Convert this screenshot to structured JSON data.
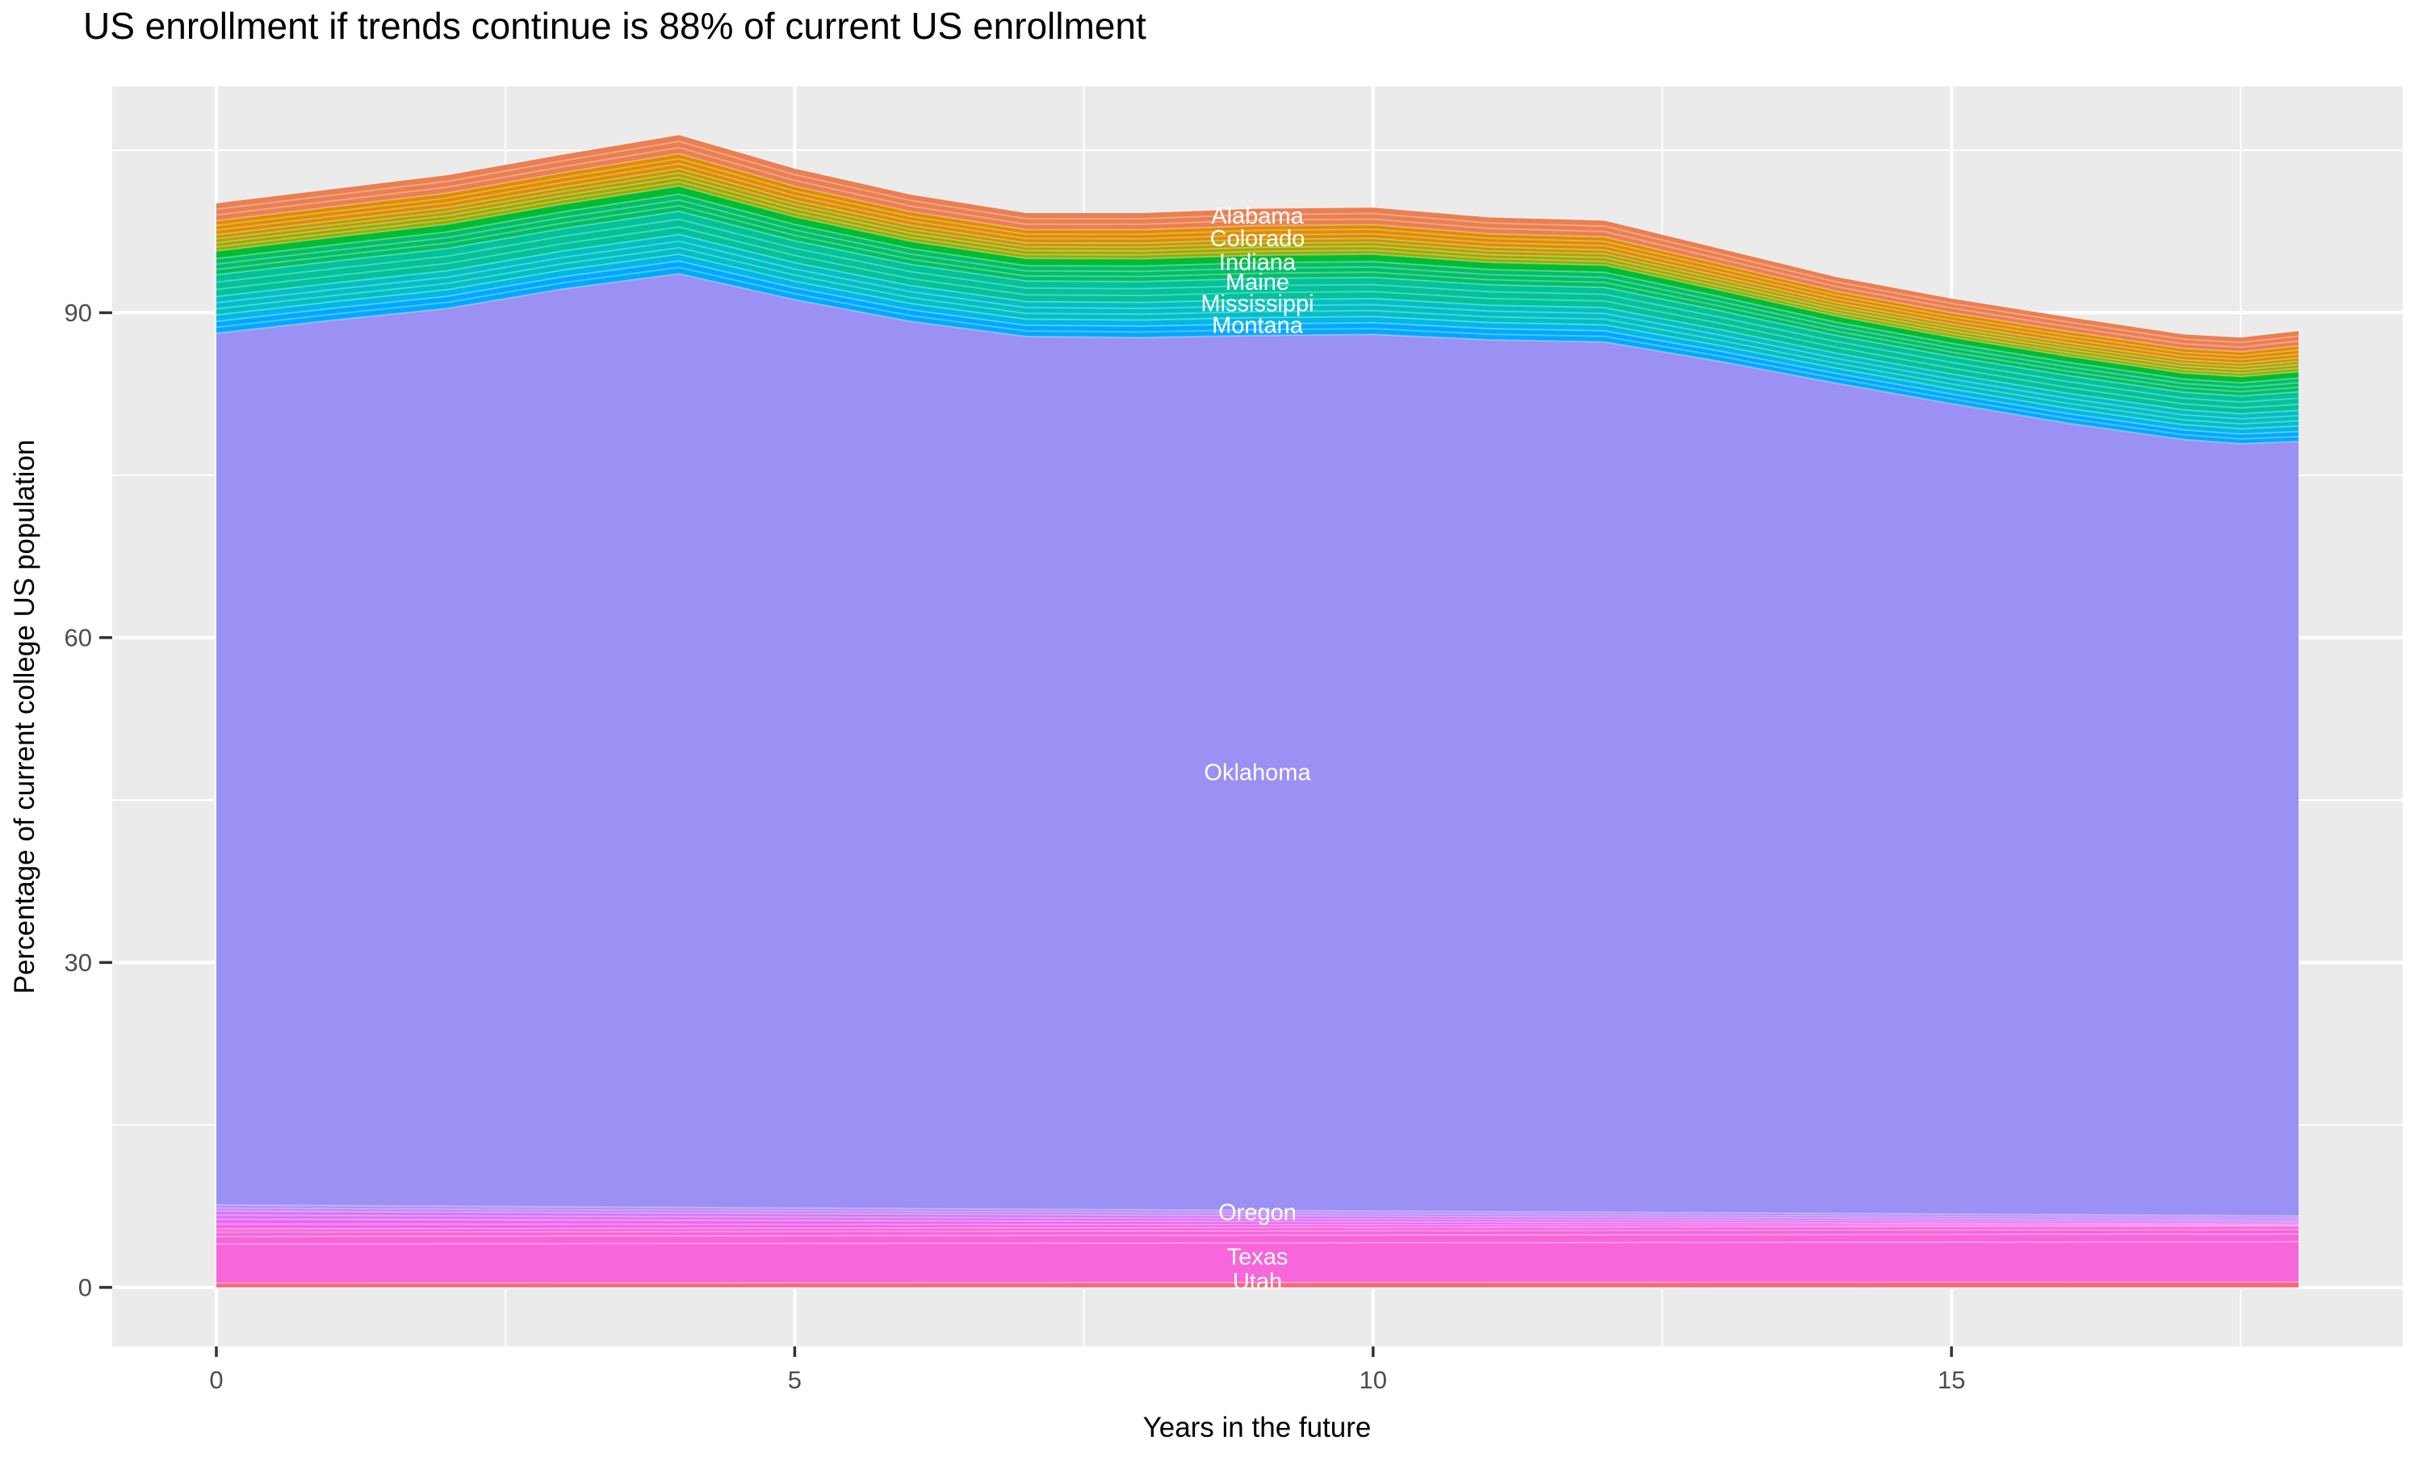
{
  "chart": {
    "title": "US enrollment if trends continue is 88% of current US enrollment",
    "xlabel": "Years in the future",
    "ylabel": "Percentage of current college US population"
  },
  "colors": {
    "background": "#FFFFFF",
    "panel": "#EBEBEB",
    "gridline": "#FFFFFF",
    "tick_mark": "#333333",
    "tick_label": "#4D4D4D",
    "area_label_text": "#FFFFFF",
    "separator_line": "rgba(255,255,255,0.30)"
  },
  "chart_data": {
    "type": "area",
    "stacked": true,
    "title": "US enrollment if trends continue is 88% of current US enrollment",
    "xlabel": "Years in the future",
    "ylabel": "Percentage of current college US population",
    "legend": "none",
    "grid": "on",
    "x_range": [
      -0.9,
      18.9
    ],
    "y_range": [
      -5.45,
      110.9
    ],
    "x_ticks": [
      0,
      5,
      10,
      15
    ],
    "y_ticks": [
      0,
      30,
      60,
      90
    ],
    "x_minor_ticks": [
      2.5,
      7.5,
      12.5,
      17.5
    ],
    "y_minor_ticks": [
      15,
      45,
      75,
      105
    ],
    "x": [
      0,
      1,
      2,
      3,
      4,
      5,
      6,
      7,
      8,
      9,
      10,
      11,
      12,
      13,
      14,
      15,
      16,
      17,
      17.5,
      18
    ],
    "total_top": [
      100.1,
      101.4,
      102.7,
      104.6,
      106.4,
      103.3,
      100.9,
      99.2,
      99.2,
      99.6,
      99.7,
      98.8,
      98.5,
      95.9,
      93.3,
      91.3,
      89.6,
      88.0,
      87.7,
      88.3
    ],
    "oklahoma_top": [
      88.1,
      89.3,
      90.4,
      92.2,
      93.6,
      91.2,
      89.2,
      87.8,
      87.7,
      87.9,
      88.0,
      87.5,
      87.3,
      85.5,
      83.5,
      81.6,
      79.8,
      78.3,
      77.9,
      78.1
    ],
    "bands_bottom": [
      {
        "name": "Utah",
        "color": "#F9687B",
        "top_start": 0.4,
        "top_end": 0.5,
        "inner_lines": []
      },
      {
        "name": "Texas",
        "color": "#F766DB",
        "top_start": 5.4,
        "top_end": 5.65,
        "inner_lines": [
          0.72,
          0.86,
          0.94
        ]
      },
      {
        "name": "",
        "color": "#EF66EC",
        "top_start": 6.3,
        "top_end": 5.85,
        "inner_lines": [
          0.5
        ]
      },
      {
        "name": "",
        "color": "#D974F8",
        "top_start": 7.05,
        "top_end": 6.2,
        "inner_lines": [
          0.5
        ]
      },
      {
        "name": "Oregon",
        "color": "#B886FB",
        "top_start": 7.6,
        "top_end": 6.6,
        "inner_lines": [
          0.5
        ]
      }
    ],
    "band_oklahoma": {
      "name": "Oklahoma",
      "color": "#9B90F4",
      "inner_lines": []
    },
    "bands_upper": [
      {
        "name": "Montana",
        "color": "#00A9FF",
        "frac": 0.092,
        "inner_lines": [
          0.5
        ]
      },
      {
        "name": "",
        "color": "#00B8E7",
        "frac": 0.05,
        "inner_lines": []
      },
      {
        "name": "Mississippi",
        "color": "#00C0C5",
        "frac": 0.143,
        "inner_lines": [
          0.33,
          0.66
        ]
      },
      {
        "name": "Maine",
        "color": "#00C29B",
        "frac": 0.168,
        "inner_lines": [
          0.33,
          0.66
        ]
      },
      {
        "name": "",
        "color": "#00BF68",
        "frac": 0.126,
        "inner_lines": [
          0.33,
          0.66
        ]
      },
      {
        "name": "",
        "color": "#00BC33",
        "frac": 0.059,
        "inner_lines": []
      },
      {
        "name": "Indiana",
        "color": "#9BAB00",
        "frac": 0.063,
        "inner_lines": [
          0.5
        ]
      },
      {
        "name": "",
        "color": "#BC9D00",
        "frac": 0.063,
        "inner_lines": [
          0.5
        ]
      },
      {
        "name": "Colorado",
        "color": "#DF8D00",
        "frac": 0.109,
        "inner_lines": [
          0.33,
          0.66
        ]
      },
      {
        "name": "Alabama",
        "color": "#EA7F51",
        "frac": 0.135,
        "inner_lines": [
          0.33,
          0.66
        ]
      }
    ],
    "area_labels": [
      {
        "text": "Alabama",
        "x": 9.0,
        "y": 98.9
      },
      {
        "text": "Colorado",
        "x": 9.0,
        "y": 96.8
      },
      {
        "text": "Indiana",
        "x": 9.0,
        "y": 94.6
      },
      {
        "text": "Maine",
        "x": 9.0,
        "y": 92.8
      },
      {
        "text": "Mississippi",
        "x": 9.0,
        "y": 90.8
      },
      {
        "text": "Montana",
        "x": 9.0,
        "y": 88.8
      },
      {
        "text": "Oklahoma",
        "x": 9.0,
        "y": 47.5
      },
      {
        "text": "Oregon",
        "x": 9.0,
        "y": 6.9
      },
      {
        "text": "Texas",
        "x": 9.0,
        "y": 2.8
      },
      {
        "text": "Utah",
        "x": 9.0,
        "y": 0.52
      }
    ]
  }
}
